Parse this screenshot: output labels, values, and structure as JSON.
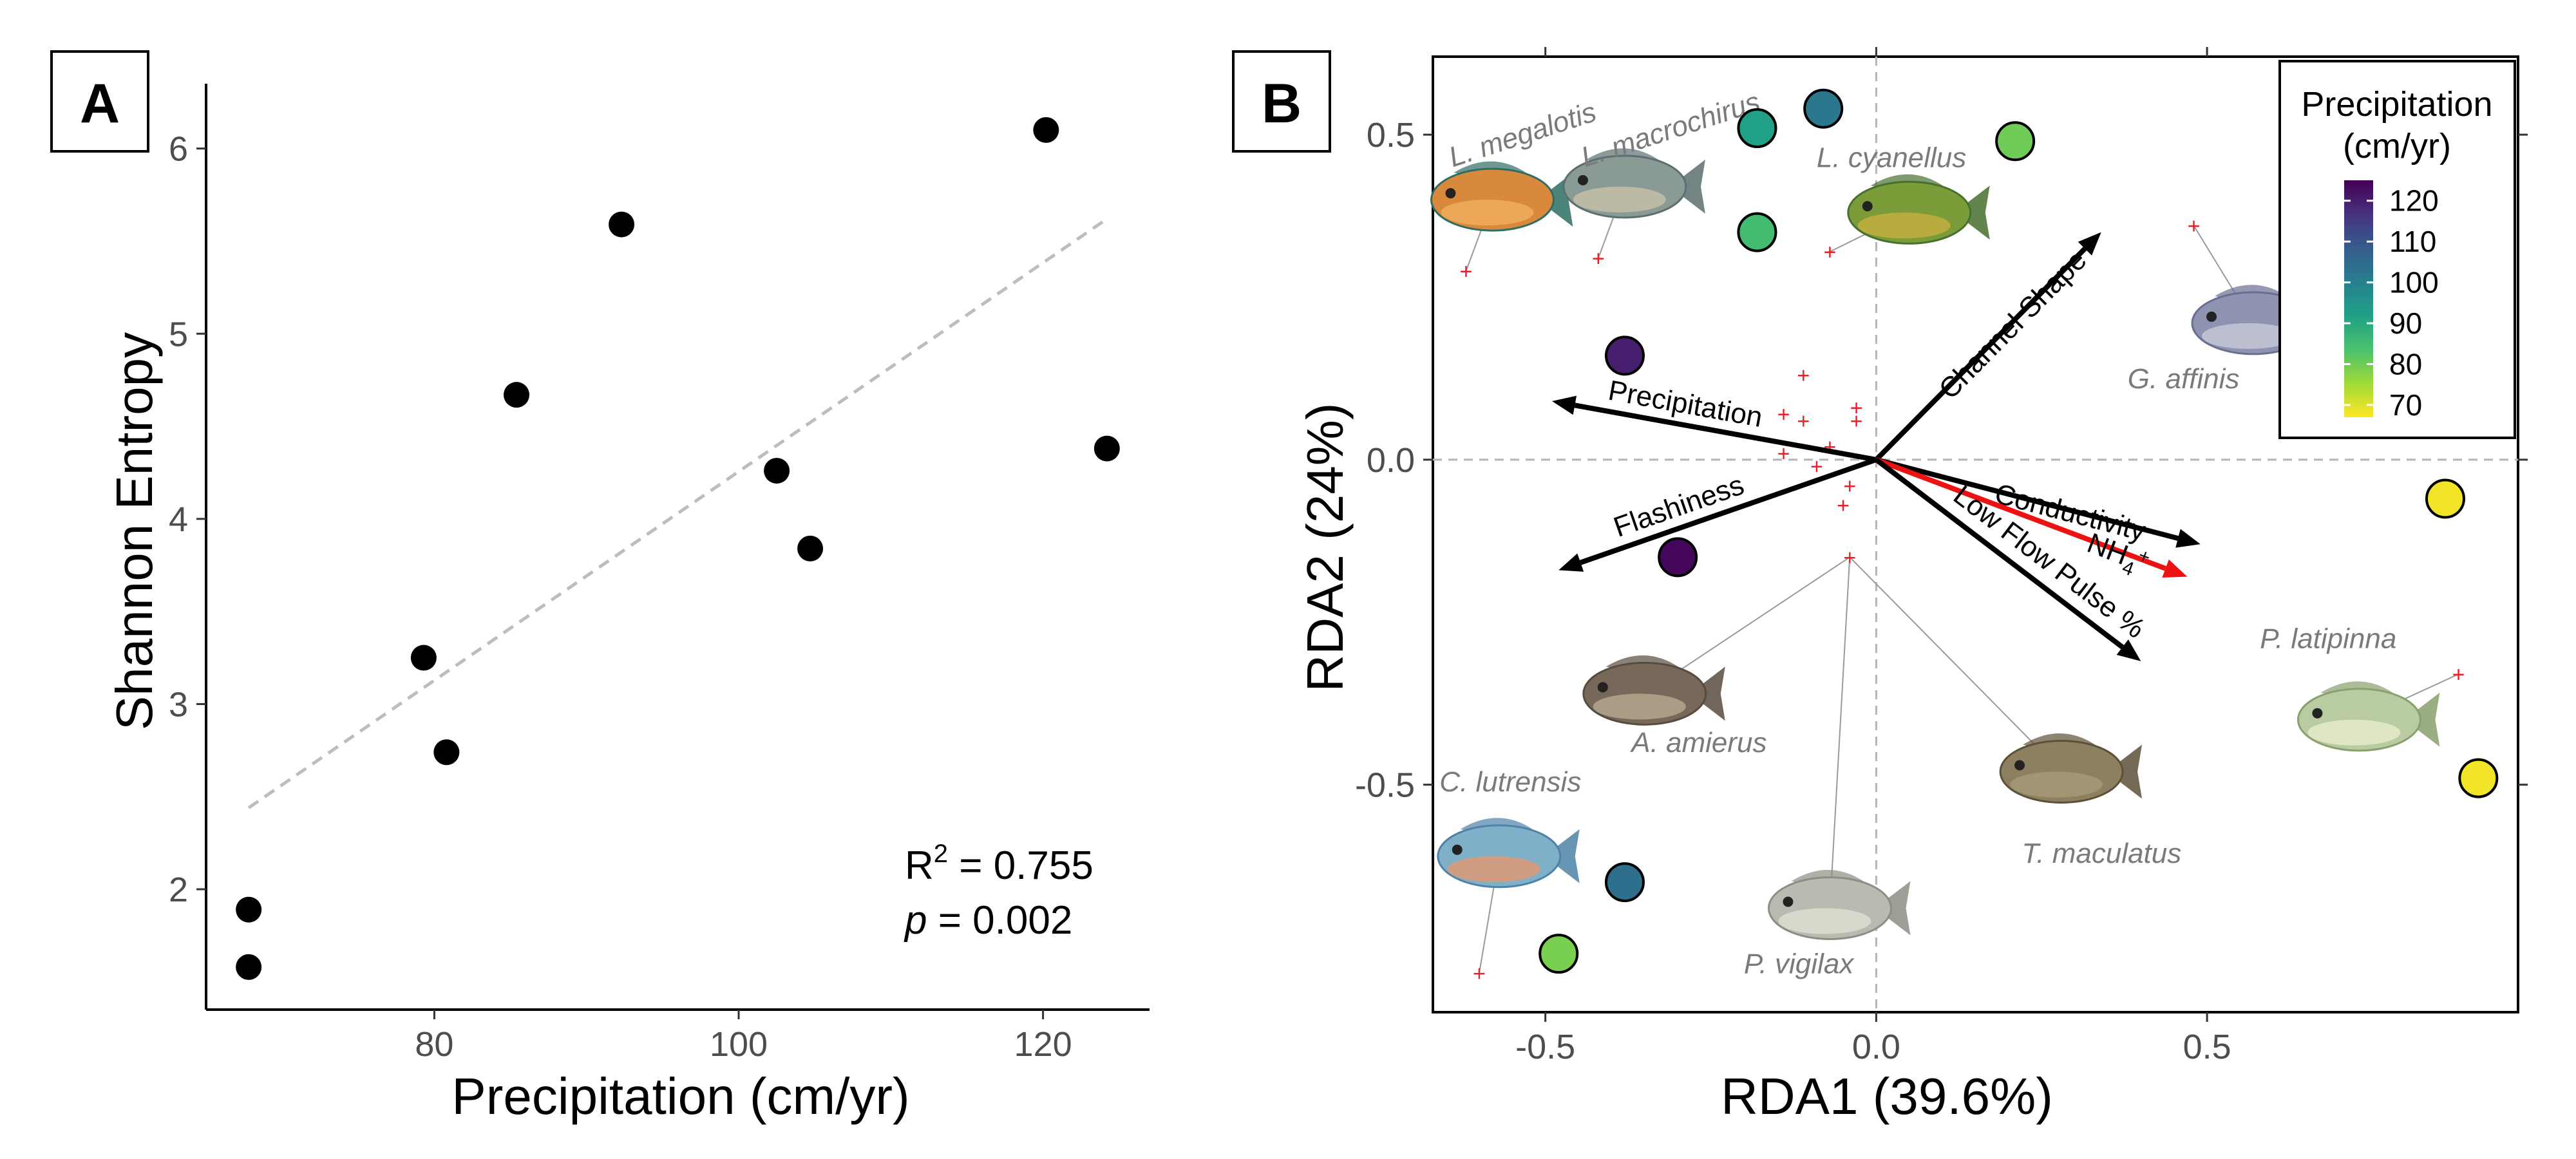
{
  "chart_data": [
    {
      "panel_label": "A",
      "type": "scatter",
      "xlabel": "Precipitation (cm/yr)",
      "ylabel": "Shannon Entropy",
      "xlim": [
        65,
        127
      ],
      "ylim": [
        1.35,
        6.35
      ],
      "x_ticks": [
        80,
        100,
        120
      ],
      "y_ticks": [
        2,
        3,
        4,
        5,
        6
      ],
      "points": [
        {
          "x": 67.8,
          "y": 1.89
        },
        {
          "x": 67.8,
          "y": 1.58
        },
        {
          "x": 79.3,
          "y": 3.25
        },
        {
          "x": 80.8,
          "y": 2.74
        },
        {
          "x": 85.4,
          "y": 4.67
        },
        {
          "x": 92.3,
          "y": 5.59
        },
        {
          "x": 102.5,
          "y": 4.26
        },
        {
          "x": 104.7,
          "y": 3.84
        },
        {
          "x": 120.2,
          "y": 6.1
        },
        {
          "x": 124.2,
          "y": 4.38
        }
      ],
      "trend": {
        "x": [
          67.8,
          124.2
        ],
        "y": [
          2.44,
          5.62
        ],
        "style": "dashed",
        "color": "#bdbdbd"
      },
      "annotation": {
        "r2_prefix": "R",
        "r2_sup": "2",
        "r2_value": " = 0.755",
        "p_label": "p",
        "p_value": " = 0.002"
      },
      "grid": false,
      "point_color": "#000000"
    },
    {
      "panel_label": "B",
      "type": "scatter",
      "xlabel": "RDA1 (39.6%)",
      "ylabel": "RDA2 (24%)",
      "xlim": [
        -0.67,
        0.97
      ],
      "ylim": [
        -0.85,
        0.62
      ],
      "x_ticks": [
        -0.5,
        0.0,
        0.5
      ],
      "x_tick_labels": [
        "-0.5",
        "0.0",
        "0.5"
      ],
      "y_ticks": [
        0.5,
        0.0,
        -0.5
      ],
      "y_tick_labels": [
        "0.5",
        "0.0",
        "-0.5"
      ],
      "grid": false,
      "legend": {
        "title_line1": "Precipitation",
        "title_line2": "(cm/yr)",
        "position": "top-right",
        "ticks": [
          "120",
          "110",
          "100",
          "90",
          "80",
          "70"
        ],
        "tick_values": [
          120,
          110,
          100,
          90,
          80,
          70
        ],
        "range": [
          67,
          125
        ],
        "colors": [
          "#fde725",
          "#a0da39",
          "#4ac16d",
          "#1fa187",
          "#277f8e",
          "#365c8d",
          "#46327e",
          "#440154"
        ]
      },
      "sites": [
        {
          "x": -0.18,
          "y": 0.51,
          "precip": 92
        },
        {
          "x": -0.08,
          "y": 0.54,
          "precip": 102
        },
        {
          "x": -0.18,
          "y": 0.35,
          "precip": 85
        },
        {
          "x": 0.21,
          "y": 0.49,
          "precip": 80
        },
        {
          "x": -0.38,
          "y": 0.16,
          "precip": 120
        },
        {
          "x": -0.3,
          "y": -0.15,
          "precip": 124
        },
        {
          "x": 0.86,
          "y": -0.06,
          "precip": 68
        },
        {
          "x": 0.91,
          "y": -0.49,
          "precip": 68
        },
        {
          "x": -0.38,
          "y": -0.65,
          "precip": 104
        },
        {
          "x": -0.48,
          "y": -0.76,
          "precip": 79
        }
      ],
      "species_points": [
        {
          "x": -0.62,
          "y": 0.29
        },
        {
          "x": -0.42,
          "y": 0.31
        },
        {
          "x": -0.07,
          "y": 0.32
        },
        {
          "x": 0.48,
          "y": 0.36
        },
        {
          "x": -0.11,
          "y": 0.13
        },
        {
          "x": -0.11,
          "y": 0.06
        },
        {
          "x": -0.03,
          "y": 0.08
        },
        {
          "x": -0.03,
          "y": 0.06
        },
        {
          "x": -0.14,
          "y": 0.07
        },
        {
          "x": -0.14,
          "y": 0.01
        },
        {
          "x": -0.07,
          "y": 0.02
        },
        {
          "x": -0.09,
          "y": -0.01
        },
        {
          "x": -0.04,
          "y": -0.04
        },
        {
          "x": -0.05,
          "y": -0.07
        },
        {
          "x": -0.04,
          "y": -0.15
        },
        {
          "x": 0.88,
          "y": -0.33
        },
        {
          "x": -0.6,
          "y": -0.79
        }
      ],
      "vectors": [
        {
          "name": "Channel Shape",
          "x": 0.34,
          "y": 0.35,
          "color": "#000000"
        },
        {
          "name": "Precipitation",
          "x": -0.49,
          "y": 0.09,
          "color": "#000000"
        },
        {
          "name": "Conductivity",
          "x": 0.49,
          "y": -0.13,
          "color": "#000000"
        },
        {
          "name": "NH",
          "sub": "4",
          "sup": "+",
          "x": 0.47,
          "y": -0.18,
          "color": "#ee1111"
        },
        {
          "name": "Flashiness",
          "x": -0.48,
          "y": -0.17,
          "color": "#000000"
        },
        {
          "name": "Low Flow Pulse %",
          "x": 0.4,
          "y": -0.31,
          "color": "#000000"
        }
      ],
      "species_labels": [
        {
          "name": "L. megalotis",
          "x": -0.64,
          "y": 0.45,
          "rot": -18,
          "anchor": "start"
        },
        {
          "name": "L. macrochirus",
          "x": -0.44,
          "y": 0.45,
          "rot": -18,
          "anchor": "start"
        },
        {
          "name": "L. cyanellus",
          "x": -0.09,
          "y": 0.45,
          "rot": 0,
          "anchor": "start"
        },
        {
          "name": "G. affinis",
          "x": 0.38,
          "y": 0.11,
          "rot": 0,
          "anchor": "start"
        },
        {
          "name": "A. amierus",
          "x": -0.37,
          "y": -0.45,
          "rot": 0,
          "anchor": "start"
        },
        {
          "name": "C. lutrensis",
          "x": -0.66,
          "y": -0.51,
          "rot": 0,
          "anchor": "start"
        },
        {
          "name": "T. maculatus",
          "x": 0.22,
          "y": -0.62,
          "rot": 0,
          "anchor": "start"
        },
        {
          "name": "P. vigilax",
          "x": -0.2,
          "y": -0.79,
          "rot": 0,
          "anchor": "start"
        },
        {
          "name": "P. latipinna",
          "x": 0.58,
          "y": -0.29,
          "rot": 0,
          "anchor": "start"
        }
      ],
      "species_images": [
        {
          "name": "L. megalotis",
          "x": -0.58,
          "y": 0.4,
          "body": "#d9893b",
          "belly": "#f0b060",
          "stripe": "#2d6e63"
        },
        {
          "name": "L. macrochirus",
          "x": -0.38,
          "y": 0.42,
          "body": "#8a9a95",
          "belly": "#c8c0a8",
          "stripe": "#5c6e70"
        },
        {
          "name": "L. cyanellus",
          "x": 0.05,
          "y": 0.38,
          "body": "#7c9c3a",
          "belly": "#c8b040",
          "stripe": "#46702e"
        },
        {
          "name": "G. affinis",
          "x": 0.57,
          "y": 0.21,
          "body": "#8d93b0",
          "belly": "#c8cad8",
          "stripe": "#6a6e90"
        },
        {
          "name": "A. amierus",
          "x": -0.35,
          "y": -0.36,
          "body": "#77685a",
          "belly": "#b8aa90",
          "stripe": "#574b40"
        },
        {
          "name": "C. lutrensis",
          "x": -0.57,
          "y": -0.61,
          "body": "#7fb0c8",
          "belly": "#e59870",
          "stripe": "#4f82a8"
        },
        {
          "name": "T. maculatus",
          "x": 0.28,
          "y": -0.48,
          "body": "#8c8060",
          "belly": "#a89a78",
          "stripe": "#5c5038"
        },
        {
          "name": "P. vigilax",
          "x": -0.07,
          "y": -0.69,
          "body": "#b8bcb0",
          "belly": "#e0e0d4",
          "stripe": "#8a8e84"
        },
        {
          "name": "P. latipinna",
          "x": 0.73,
          "y": -0.4,
          "body": "#b9cba0",
          "belly": "#e8eccc",
          "stripe": "#8aa06c"
        }
      ]
    }
  ]
}
